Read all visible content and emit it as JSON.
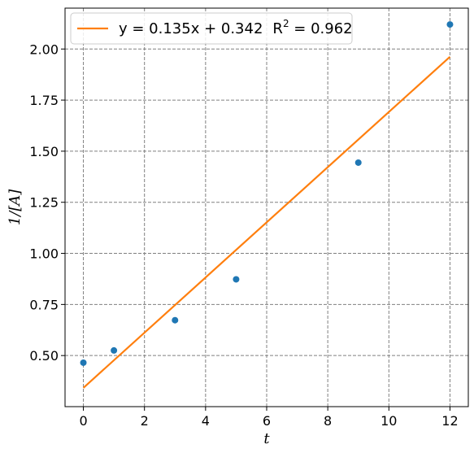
{
  "chart_data": {
    "type": "scatter",
    "xlabel": "t",
    "ylabel": "1/[A]",
    "xlim": [
      -0.6,
      12.6
    ],
    "ylim": [
      0.25,
      2.2
    ],
    "xticks": [
      0,
      2,
      4,
      6,
      8,
      10,
      12
    ],
    "xtick_labels": [
      "0",
      "2",
      "4",
      "6",
      "8",
      "10",
      "12"
    ],
    "yticks": [
      0.5,
      0.75,
      1.0,
      1.25,
      1.5,
      1.75,
      2.0
    ],
    "ytick_labels": [
      "0.50",
      "0.75",
      "1.00",
      "1.25",
      "1.50",
      "1.75",
      "2.00"
    ],
    "grid": true,
    "legend_position": "top-left",
    "series": [
      {
        "kind": "scatter",
        "color": "#1f77b4",
        "x": [
          0,
          1,
          3,
          5,
          9,
          12
        ],
        "y": [
          0.465,
          0.525,
          0.673,
          0.873,
          1.444,
          2.12
        ]
      },
      {
        "kind": "line",
        "name": "y = 0.135x + 0.342",
        "color": "#ff7f0e",
        "x": [
          0,
          12
        ],
        "y": [
          0.342,
          1.962
        ]
      }
    ],
    "legend": {
      "fit_label": "y = 0.135x + 0.342",
      "r2_label": "R",
      "r2_sup": "2",
      "r2_value": " = 0.962"
    }
  }
}
